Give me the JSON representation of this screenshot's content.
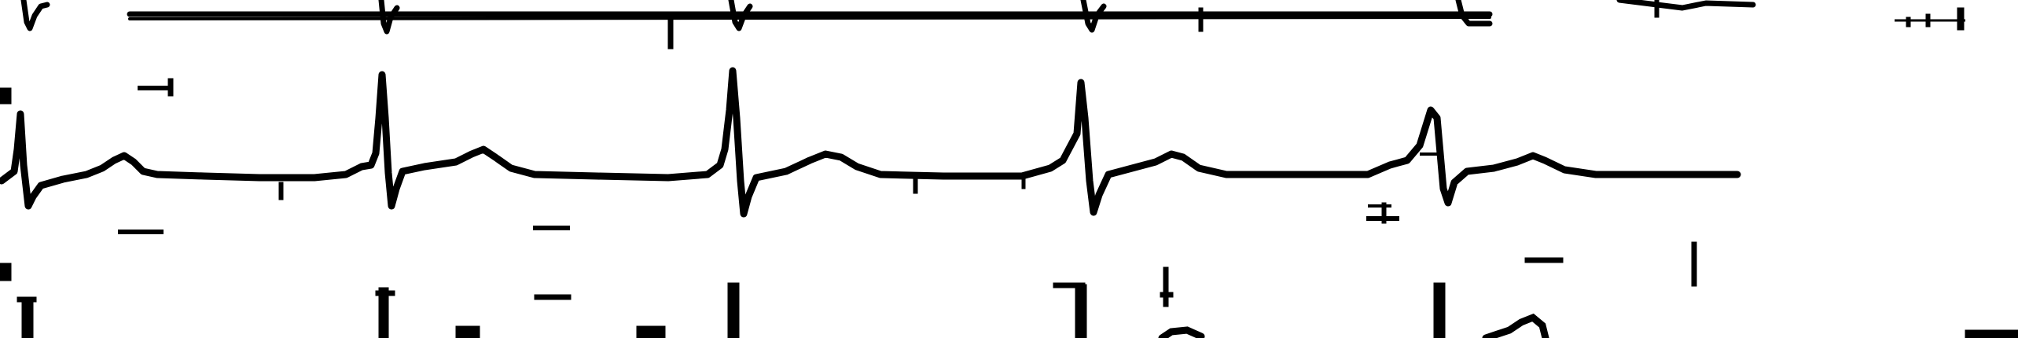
{
  "image": {
    "kind": "ecg-rhythm-strip-scan",
    "ink_color": "#000000",
    "background_color": "#ffffff",
    "leads_visible": 3
  }
}
